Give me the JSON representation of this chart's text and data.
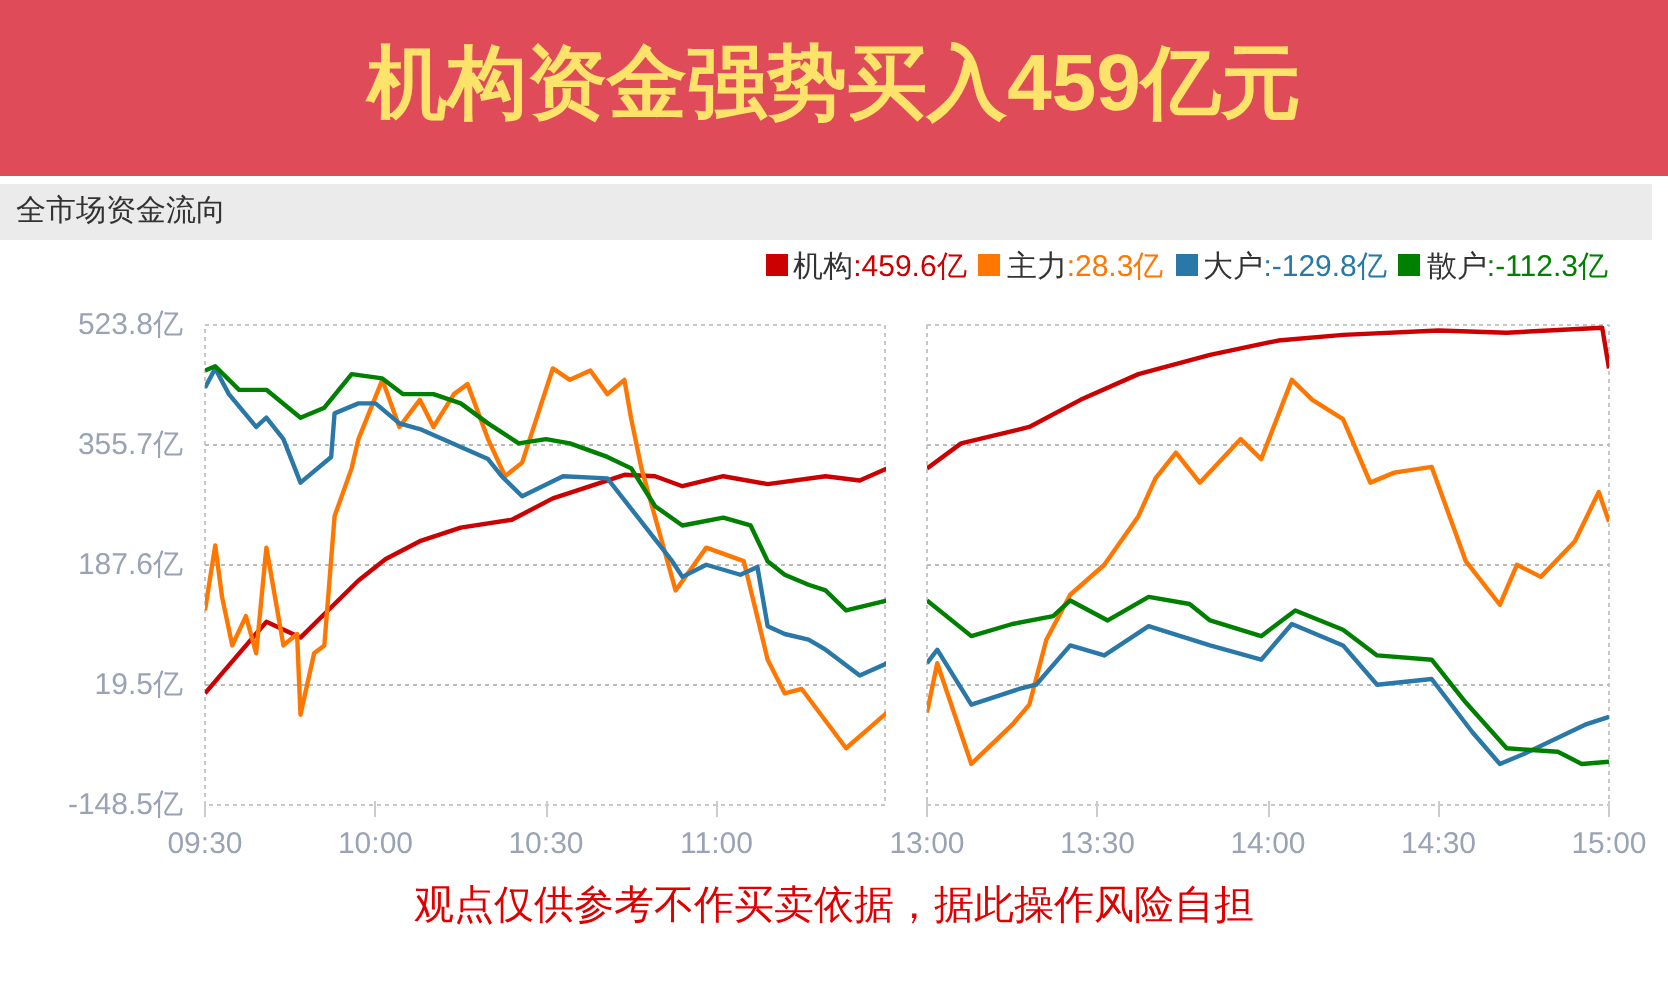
{
  "chart_data": [
    {
      "type": "line",
      "title": "机构资金强势买入459亿元",
      "subtitle": "全市场资金流向",
      "xlim": [
        9.5,
        11.5
      ],
      "xticks": [
        {
          "value": 9.5,
          "label": "09:30"
        },
        {
          "value": 10,
          "label": "10:00"
        },
        {
          "value": 10.5,
          "label": "10:30"
        },
        {
          "value": 11,
          "label": "11:00"
        }
      ],
      "ylim": [
        -148.5,
        523.8
      ],
      "yticks": [
        {
          "value": -148.5,
          "label": "-148.5亿"
        },
        {
          "value": 19.5,
          "label": "19.5亿"
        },
        {
          "value": 187.6,
          "label": "187.6亿"
        },
        {
          "value": 355.7,
          "label": "355.7亿"
        },
        {
          "value": 523.8,
          "label": "523.8亿"
        }
      ],
      "grid": "y",
      "legend": "top right",
      "series": [
        {
          "name": "机构:459.6亿",
          "color": "#cc0000",
          "x": [
            9.5,
            9.57,
            9.68,
            9.78,
            9.85,
            9.95,
            10.03,
            10.13,
            10.25,
            10.4,
            10.52,
            10.63,
            10.73,
            10.82,
            10.9,
            11.02,
            11.15,
            11.32,
            11.42,
            11.5
          ],
          "values": [
            8,
            47,
            108,
            86,
            119,
            166,
            196,
            221,
            240,
            251,
            281,
            298,
            314,
            312,
            298,
            312,
            301,
            312,
            306,
            323
          ]
        },
        {
          "name": "主力:28.3亿",
          "color": "#ff7700",
          "x": [
            9.5,
            9.53,
            9.55,
            9.58,
            9.62,
            9.65,
            9.68,
            9.73,
            9.77,
            9.78,
            9.82,
            9.85,
            9.88,
            9.93,
            9.95,
            10.02,
            10.07,
            10.13,
            10.17,
            10.23,
            10.27,
            10.33,
            10.38,
            10.43,
            10.52,
            10.57,
            10.63,
            10.68,
            10.73,
            10.75,
            10.78,
            10.88,
            10.97,
            11.08,
            11.15,
            11.2,
            11.25,
            11.38,
            11.5
          ],
          "values": [
            124,
            215,
            143,
            75,
            116,
            64,
            212,
            75,
            91,
            -22,
            64,
            75,
            256,
            323,
            364,
            447,
            381,
            419,
            381,
            427,
            441,
            364,
            312,
            331,
            463,
            447,
            460,
            427,
            447,
            392,
            323,
            152,
            212,
            193,
            55,
            8,
            14,
            -69,
            -19
          ]
        },
        {
          "name": "大户:-129.8亿",
          "color": "#2a78a8",
          "x": [
            9.5,
            9.53,
            9.57,
            9.65,
            9.68,
            9.73,
            9.78,
            9.87,
            9.88,
            9.95,
            10,
            10.07,
            10.13,
            10.25,
            10.33,
            10.37,
            10.43,
            10.55,
            10.68,
            10.78,
            10.87,
            10.9,
            10.97,
            11.07,
            11.12,
            11.15,
            11.2,
            11.27,
            11.32,
            11.42,
            11.5
          ],
          "values": [
            436,
            463,
            427,
            381,
            394,
            364,
            303,
            339,
            400,
            414,
            414,
            386,
            378,
            353,
            336,
            312,
            284,
            312,
            309,
            248,
            193,
            171,
            188,
            174,
            185,
            102,
            91,
            83,
            69,
            33,
            50
          ]
        },
        {
          "name": "散户:-112.3亿",
          "color": "#008000",
          "x": [
            9.5,
            9.53,
            9.6,
            9.68,
            9.78,
            9.85,
            9.93,
            10.02,
            10.08,
            10.17,
            10.25,
            10.33,
            10.42,
            10.5,
            10.57,
            10.68,
            10.75,
            10.82,
            10.9,
            11.02,
            11.1,
            11.15,
            11.2,
            11.27,
            11.32,
            11.38,
            11.5
          ],
          "values": [
            460,
            466,
            433,
            433,
            394,
            408,
            455,
            449,
            427,
            427,
            414,
            386,
            358,
            364,
            358,
            339,
            323,
            270,
            243,
            254,
            243,
            193,
            174,
            160,
            152,
            124,
            138
          ]
        }
      ]
    },
    {
      "type": "line",
      "xlim": [
        13,
        15
      ],
      "xticks": [
        {
          "value": 13,
          "label": "13:00"
        },
        {
          "value": 13.5,
          "label": "13:30"
        },
        {
          "value": 14,
          "label": "14:00"
        },
        {
          "value": 14.5,
          "label": "14:30"
        },
        {
          "value": 15,
          "label": "15:00"
        }
      ],
      "ylim": [
        -148.5,
        523.8
      ],
      "yticks": [
        {
          "value": -148.5,
          "label": null
        },
        {
          "value": 19.5,
          "label": null
        },
        {
          "value": 187.6,
          "label": null
        },
        {
          "value": 355.7,
          "label": null
        },
        {
          "value": 523.8,
          "label": null
        }
      ],
      "tick_labels": "x",
      "grid": "y",
      "annotations": [
        "观点仅供参考不作买卖依据，据此操作风险自担"
      ],
      "series": [
        {
          "color": "#cc0000",
          "x": [
            13,
            13.1,
            13.3,
            13.45,
            13.62,
            13.83,
            14.03,
            14.22,
            14.5,
            14.7,
            14.98,
            15
          ],
          "values": [
            323,
            358,
            381,
            419,
            455,
            482,
            502,
            510,
            516,
            513,
            520,
            463
          ]
        },
        {
          "color": "#ff7700",
          "x": [
            13,
            13.03,
            13.13,
            13.25,
            13.3,
            13.35,
            13.42,
            13.52,
            13.62,
            13.67,
            13.73,
            13.8,
            13.92,
            13.98,
            14.07,
            14.13,
            14.22,
            14.3,
            14.37,
            14.48,
            14.58,
            14.68,
            14.73,
            14.8,
            14.9,
            14.97,
            15
          ],
          "values": [
            -19,
            50,
            -91,
            -36,
            -8,
            83,
            146,
            188,
            256,
            309,
            345,
            303,
            364,
            336,
            447,
            419,
            392,
            303,
            317,
            325,
            193,
            132,
            188,
            171,
            221,
            290,
            248
          ]
        },
        {
          "color": "#2a78a8",
          "x": [
            13,
            13.03,
            13.13,
            13.27,
            13.32,
            13.42,
            13.52,
            13.65,
            13.83,
            13.98,
            14.07,
            14.22,
            14.32,
            14.48,
            14.6,
            14.68,
            14.75,
            14.93,
            15
          ],
          "values": [
            50,
            69,
            -8,
            14,
            20,
            75,
            61,
            102,
            75,
            55,
            105,
            75,
            20,
            28,
            -47,
            -91,
            -77,
            -36,
            -25
          ]
        },
        {
          "color": "#008000",
          "x": [
            13,
            13.13,
            13.25,
            13.37,
            13.42,
            13.53,
            13.65,
            13.77,
            13.83,
            13.98,
            14.08,
            14.22,
            14.32,
            14.48,
            14.58,
            14.7,
            14.85,
            14.92,
            15
          ],
          "values": [
            138,
            88,
            105,
            116,
            138,
            110,
            143,
            133,
            110,
            88,
            124,
            97,
            61,
            55,
            -5,
            -69,
            -74,
            -91,
            -88
          ]
        }
      ]
    }
  ]
}
